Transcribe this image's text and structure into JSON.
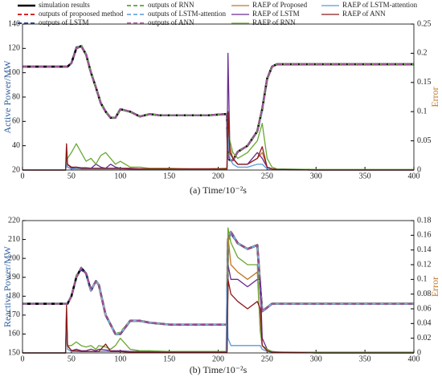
{
  "chart_data": [
    {
      "type": "line",
      "xlabel": "(a) Time/10⁻²s",
      "ylabel": "Active Power/MW",
      "y2label": "Error",
      "xlim": [
        0,
        400
      ],
      "xticks": [
        0,
        50,
        100,
        150,
        200,
        250,
        300,
        350,
        400
      ],
      "ylim": [
        20,
        140
      ],
      "yticks": [
        20,
        40,
        60,
        80,
        100,
        120,
        140
      ],
      "y2lim": [
        0,
        0.25
      ],
      "y2ticks": [
        0,
        0.05,
        0.1,
        0.15,
        0.2,
        0.25
      ],
      "x": [
        0,
        44,
        45,
        46,
        50,
        55,
        60,
        65,
        70,
        75,
        80,
        85,
        90,
        95,
        100,
        110,
        120,
        130,
        140,
        150,
        170,
        190,
        208,
        209,
        210,
        212,
        215,
        220,
        230,
        240,
        245,
        250,
        255,
        260,
        300,
        350,
        400
      ],
      "series": [
        {
          "name": "simulation results",
          "color": "#000000",
          "dash": false,
          "width": 2.6,
          "values": [
            105,
            105,
            105,
            105,
            108,
            120,
            122,
            115,
            100,
            88,
            75,
            68,
            63,
            63,
            70,
            68,
            64,
            66,
            65,
            65,
            65,
            65,
            66,
            66,
            30,
            28,
            28,
            35,
            40,
            52,
            70,
            95,
            105,
            107,
            107,
            107,
            107
          ]
        },
        {
          "name": "outputs of propoosed method",
          "color": "#d62728",
          "dash": true,
          "width": 2,
          "values": [
            105,
            105,
            105,
            105,
            108,
            120,
            122,
            115,
            100,
            88,
            75,
            68,
            63,
            63,
            70,
            68,
            64,
            66,
            65,
            65,
            65,
            65,
            66,
            66,
            31,
            28,
            28,
            35,
            40,
            52,
            70,
            95,
            105,
            107,
            107,
            107,
            107
          ]
        },
        {
          "name": "outputs of LSTM",
          "color": "#1f3f8f",
          "dash": true,
          "width": 2,
          "values": [
            105,
            105,
            105,
            105,
            108,
            121,
            122,
            115,
            100,
            88,
            75,
            68,
            63,
            63,
            70,
            68,
            64,
            66,
            65,
            65,
            65,
            65,
            66,
            66,
            32,
            28,
            28,
            35,
            40,
            52,
            70,
            95,
            105,
            107,
            107,
            107,
            107
          ]
        },
        {
          "name": "outputs of RNN",
          "color": "#6ab04c",
          "dash": true,
          "width": 2,
          "values": [
            105,
            105,
            105,
            105,
            108,
            120,
            123,
            115,
            100,
            88,
            75,
            68,
            63,
            63,
            70,
            68,
            64,
            66,
            65,
            65,
            65,
            65,
            66,
            66,
            30,
            28,
            28,
            35,
            40,
            52,
            70,
            95,
            105,
            107,
            107,
            107,
            107
          ]
        },
        {
          "name": "outputs of LSTM-attention",
          "color": "#7fb2e5",
          "dash": true,
          "width": 2,
          "values": [
            105,
            105,
            105,
            105,
            108,
            120,
            122,
            115,
            100,
            88,
            75,
            68,
            63,
            63,
            70,
            68,
            64,
            66,
            65,
            65,
            65,
            65,
            66,
            66,
            30,
            28,
            28,
            35,
            40,
            52,
            68,
            95,
            105,
            107,
            107,
            107,
            107
          ]
        },
        {
          "name": "outputs of ANN",
          "color": "#a05195",
          "dash": true,
          "width": 2,
          "values": [
            105,
            105,
            105,
            105,
            108,
            120,
            122,
            115,
            100,
            88,
            75,
            68,
            63,
            63,
            70,
            68,
            64,
            66,
            65,
            65,
            65,
            65,
            66,
            66,
            29,
            28,
            28,
            35,
            40,
            52,
            70,
            95,
            105,
            107,
            107,
            107,
            107
          ]
        },
        {
          "name": "RAEP of Proposed",
          "color": "#c0782a",
          "dash": false,
          "width": 1.3,
          "axis": "y2",
          "values": [
            0,
            0,
            0.03,
            0.005,
            0.002,
            0.003,
            0.002,
            0.002,
            0.002,
            0.002,
            0.002,
            0.002,
            0.002,
            0.002,
            0.002,
            0.002,
            0.002,
            0.002,
            0.002,
            0.002,
            0.001,
            0.001,
            0.001,
            0.001,
            0.1,
            0.04,
            0.02,
            0.01,
            0.01,
            0.02,
            0.03,
            0.005,
            0.002,
            0.001,
            0,
            0,
            0
          ]
        },
        {
          "name": "RAEP of LSTM",
          "color": "#6a2c91",
          "dash": false,
          "width": 1.3,
          "axis": "y2",
          "values": [
            0,
            0,
            0.02,
            0.01,
            0.003,
            0.005,
            0.004,
            0.004,
            0.003,
            0.01,
            0.005,
            0.003,
            0.01,
            0.005,
            0.003,
            0.003,
            0.002,
            0.002,
            0.002,
            0.002,
            0.002,
            0.002,
            0.002,
            0.002,
            0.2,
            0.03,
            0.02,
            0.01,
            0.01,
            0.03,
            0.02,
            0.005,
            0.002,
            0.001,
            0,
            0,
            0
          ]
        },
        {
          "name": "RAEP of RNN",
          "color": "#6aa832",
          "dash": false,
          "width": 1.3,
          "axis": "y2",
          "values": [
            0,
            0,
            0.01,
            0.02,
            0.03,
            0.045,
            0.03,
            0.015,
            0.02,
            0.01,
            0.025,
            0.03,
            0.02,
            0.01,
            0.015,
            0.005,
            0.005,
            0.003,
            0.003,
            0.003,
            0.002,
            0.002,
            0.003,
            0.003,
            0.08,
            0.05,
            0.03,
            0.02,
            0.03,
            0.05,
            0.08,
            0.02,
            0.005,
            0.002,
            0.001,
            0.001,
            0.001
          ]
        },
        {
          "name": "RAEP of LSTM-attention",
          "color": "#5b9bd5",
          "dash": false,
          "width": 1.3,
          "axis": "y2",
          "values": [
            0,
            0,
            0.01,
            0.005,
            0.002,
            0.002,
            0.002,
            0.002,
            0.002,
            0.002,
            0.002,
            0.002,
            0.002,
            0.002,
            0.002,
            0.001,
            0.001,
            0.001,
            0.001,
            0.001,
            0.001,
            0.001,
            0.001,
            0.001,
            0.06,
            0.02,
            0.01,
            0.005,
            0.005,
            0.01,
            0.01,
            0.002,
            0.001,
            0.001,
            0,
            0,
            0
          ]
        },
        {
          "name": "RAEP of ANN",
          "color": "#8b1a1a",
          "dash": false,
          "width": 1.3,
          "axis": "y2",
          "values": [
            0,
            0,
            0.045,
            0.01,
            0.005,
            0.005,
            0.003,
            0.003,
            0.003,
            0.003,
            0.003,
            0.003,
            0.003,
            0.003,
            0.003,
            0.002,
            0.002,
            0.002,
            0.002,
            0.002,
            0.002,
            0.002,
            0.002,
            0.002,
            0.1,
            0.03,
            0.02,
            0.01,
            0.01,
            0.02,
            0.04,
            0.005,
            0.002,
            0.001,
            0,
            0,
            0
          ]
        }
      ]
    },
    {
      "type": "line",
      "xlabel": "(b) Time/10⁻²s",
      "ylabel": "Reactive Power/MW",
      "y2label": "Error",
      "xlim": [
        0,
        400
      ],
      "xticks": [
        0,
        50,
        100,
        150,
        200,
        250,
        300,
        350,
        400
      ],
      "ylim": [
        150,
        220
      ],
      "yticks": [
        150,
        160,
        170,
        180,
        190,
        200,
        210,
        220
      ],
      "y2lim": [
        0,
        0.18
      ],
      "y2ticks": [
        0,
        0.02,
        0.04,
        0.06,
        0.08,
        0.1,
        0.12,
        0.14,
        0.16,
        0.18
      ],
      "x": [
        0,
        44,
        45,
        46,
        50,
        55,
        60,
        65,
        70,
        75,
        78,
        85,
        90,
        95,
        100,
        110,
        120,
        130,
        150,
        190,
        208,
        209,
        210,
        213,
        220,
        230,
        240,
        243,
        245,
        250,
        255,
        260,
        300,
        350,
        400
      ],
      "series": [
        {
          "color": "#000000",
          "dash": false,
          "width": 2.6,
          "values": [
            176,
            176,
            176,
            176,
            180,
            190,
            195,
            192,
            183,
            188,
            186,
            170,
            165,
            160,
            160,
            167,
            167,
            166,
            165,
            165,
            165,
            165,
            210,
            214,
            208,
            205,
            207,
            185,
            172,
            174,
            176,
            176,
            176,
            176,
            176
          ]
        },
        {
          "color": "#d62728",
          "dash": true,
          "width": 2,
          "values": [
            176,
            176,
            176,
            176,
            180,
            190,
            195,
            192,
            183,
            188,
            186,
            170,
            165,
            160,
            160,
            167,
            167,
            166,
            165,
            165,
            165,
            165,
            209,
            214,
            208,
            205,
            207,
            185,
            172,
            174,
            176,
            176,
            176,
            176,
            176
          ]
        },
        {
          "color": "#1f3f8f",
          "dash": true,
          "width": 2,
          "values": [
            176,
            176,
            176,
            176,
            180,
            190,
            194,
            192,
            183,
            188,
            186,
            170,
            165,
            160,
            160,
            167,
            167,
            166,
            165,
            165,
            165,
            165,
            210,
            213,
            208,
            205,
            207,
            184,
            172,
            174,
            176,
            176,
            176,
            176,
            176
          ]
        },
        {
          "color": "#6ab04c",
          "dash": true,
          "width": 2,
          "values": [
            176,
            176,
            176,
            176,
            180,
            191,
            195,
            192,
            183,
            188,
            186,
            170,
            165,
            160,
            161,
            167,
            167,
            166,
            165,
            165,
            165,
            165,
            210,
            214,
            208,
            205,
            207,
            185,
            173,
            174,
            176,
            176,
            176,
            176,
            176
          ]
        },
        {
          "color": "#7fb2e5",
          "dash": true,
          "width": 2,
          "values": [
            176,
            176,
            176,
            176,
            180,
            190,
            195,
            192,
            183,
            188,
            186,
            170,
            165,
            160,
            160,
            167,
            167,
            166,
            165,
            165,
            165,
            165,
            210,
            214,
            208,
            205,
            207,
            185,
            172,
            174,
            176,
            176,
            176,
            176,
            176
          ]
        },
        {
          "color": "#a05195",
          "dash": true,
          "width": 2,
          "values": [
            176,
            176,
            176,
            176,
            180,
            190,
            195,
            192,
            184,
            188,
            186,
            170,
            165,
            160,
            160,
            167,
            167,
            166,
            165,
            165,
            165,
            165,
            210,
            214,
            208,
            205,
            207,
            185,
            172,
            174,
            176,
            176,
            176,
            176,
            176
          ]
        },
        {
          "color": "#c0782a",
          "dash": false,
          "width": 1.3,
          "axis": "y2",
          "values": [
            0,
            0,
            0.06,
            0.01,
            0.003,
            0.003,
            0.002,
            0.002,
            0.002,
            0.002,
            0.002,
            0.002,
            0.002,
            0.002,
            0.002,
            0.001,
            0.001,
            0.001,
            0.001,
            0.001,
            0.001,
            0.001,
            0.16,
            0.12,
            0.11,
            0.1,
            0.11,
            0.03,
            0.01,
            0.003,
            0.001,
            0.001,
            0,
            0,
            0
          ]
        },
        {
          "color": "#6a2c91",
          "dash": false,
          "width": 1.3,
          "axis": "y2",
          "values": [
            0,
            0,
            0.05,
            0.01,
            0.003,
            0.005,
            0.003,
            0.003,
            0.005,
            0.003,
            0.005,
            0.004,
            0.003,
            0.003,
            0.003,
            0.002,
            0.002,
            0.002,
            0.001,
            0.001,
            0.001,
            0.001,
            0.12,
            0.1,
            0.1,
            0.09,
            0.1,
            0.1,
            0.02,
            0.005,
            0.002,
            0.001,
            0,
            0,
            0
          ]
        },
        {
          "color": "#6aa832",
          "dash": false,
          "width": 1.3,
          "axis": "y2",
          "values": [
            0,
            0,
            0.03,
            0.01,
            0.01,
            0.015,
            0.01,
            0.008,
            0.01,
            0.005,
            0.01,
            0.008,
            0.005,
            0.01,
            0.02,
            0.005,
            0.003,
            0.003,
            0.002,
            0.002,
            0.002,
            0.002,
            0.17,
            0.15,
            0.13,
            0.12,
            0.12,
            0.03,
            0.01,
            0.005,
            0.002,
            0.001,
            0.001,
            0.001,
            0.001
          ]
        },
        {
          "color": "#5b9bd5",
          "dash": false,
          "width": 1.3,
          "axis": "y2",
          "values": [
            0,
            0,
            0.04,
            0.005,
            0.002,
            0.002,
            0.002,
            0.002,
            0.002,
            0.002,
            0.002,
            0.002,
            0.002,
            0.002,
            0.002,
            0.001,
            0.001,
            0.001,
            0.001,
            0.001,
            0.001,
            0.09,
            0.02,
            0.01,
            0.01,
            0.01,
            0.01,
            0.01,
            0.005,
            0.002,
            0.001,
            0.001,
            0,
            0,
            0
          ]
        },
        {
          "color": "#8b1a1a",
          "dash": false,
          "width": 1.3,
          "axis": "y2",
          "values": [
            0,
            0,
            0.065,
            0.01,
            0.003,
            0.003,
            0.002,
            0.002,
            0.002,
            0.002,
            0.002,
            0.012,
            0.002,
            0.002,
            0.002,
            0.001,
            0.001,
            0.001,
            0.001,
            0.001,
            0.001,
            0.001,
            0.1,
            0.08,
            0.07,
            0.06,
            0.07,
            0.06,
            0.01,
            0.003,
            0.001,
            0.001,
            0,
            0,
            0
          ]
        }
      ]
    }
  ]
}
